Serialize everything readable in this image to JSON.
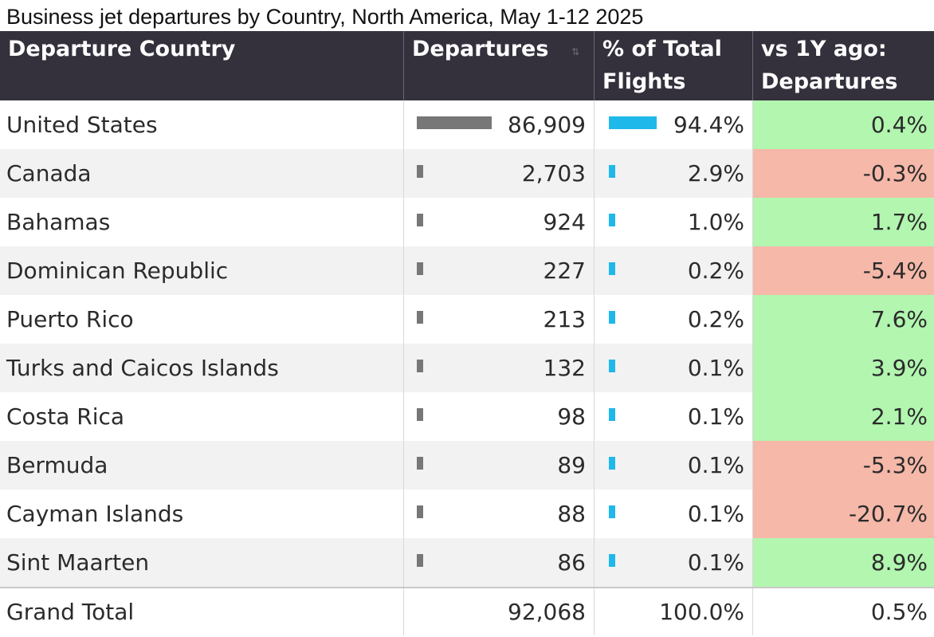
{
  "title": "Business jet departures by Country, North America, May 1-12 2025",
  "colors": {
    "header_bg": "#34313d",
    "departures_bar": "#777777",
    "pct_bar": "#1fb8ea",
    "positive_change": "#b2f6b0",
    "negative_change": "#f5b8a9"
  },
  "table": {
    "headers": {
      "country": "Departure Country",
      "departures": "Departures",
      "pct_line1": "% of Total",
      "pct_line2": "Flights",
      "yoy_line1": "vs 1Y ago:",
      "yoy_line2": "Departures"
    },
    "rows": [
      {
        "country": "United States",
        "departures": "86,909",
        "pct": "94.4%",
        "yoy": "0.4%"
      },
      {
        "country": "Canada",
        "departures": "2,703",
        "pct": "2.9%",
        "yoy": "-0.3%"
      },
      {
        "country": "Bahamas",
        "departures": "924",
        "pct": "1.0%",
        "yoy": "1.7%"
      },
      {
        "country": "Dominican Republic",
        "departures": "227",
        "pct": "0.2%",
        "yoy": "-5.4%"
      },
      {
        "country": "Puerto Rico",
        "departures": "213",
        "pct": "0.2%",
        "yoy": "7.6%"
      },
      {
        "country": "Turks and Caicos Islands",
        "departures": "132",
        "pct": "0.1%",
        "yoy": "3.9%"
      },
      {
        "country": "Costa Rica",
        "departures": "98",
        "pct": "0.1%",
        "yoy": "2.1%"
      },
      {
        "country": "Bermuda",
        "departures": "89",
        "pct": "0.1%",
        "yoy": "-5.3%"
      },
      {
        "country": "Cayman Islands",
        "departures": "88",
        "pct": "0.1%",
        "yoy": "-20.7%"
      },
      {
        "country": "Sint Maarten",
        "departures": "86",
        "pct": "0.1%",
        "yoy": "8.9%"
      }
    ],
    "total": {
      "label": "Grand Total",
      "departures": "92,068",
      "pct": "100.0%",
      "yoy": "0.5%"
    }
  },
  "chart_data": {
    "type": "table",
    "title": "Business jet departures by Country, North America, May 1-12 2025",
    "columns": [
      "Departure Country",
      "Departures",
      "% of Total Flights",
      "vs 1Y ago: Departures"
    ],
    "categories": [
      "United States",
      "Canada",
      "Bahamas",
      "Dominican Republic",
      "Puerto Rico",
      "Turks and Caicos Islands",
      "Costa Rica",
      "Bermuda",
      "Cayman Islands",
      "Sint Maarten"
    ],
    "series": [
      {
        "name": "Departures",
        "values": [
          86909,
          2703,
          924,
          227,
          213,
          132,
          98,
          89,
          88,
          86
        ]
      },
      {
        "name": "% of Total Flights",
        "values": [
          94.4,
          2.9,
          1.0,
          0.2,
          0.2,
          0.1,
          0.1,
          0.1,
          0.1,
          0.1
        ]
      },
      {
        "name": "vs 1Y ago: Departures",
        "values": [
          0.4,
          -0.3,
          1.7,
          -5.4,
          7.6,
          3.9,
          2.1,
          -5.3,
          -20.7,
          8.9
        ]
      }
    ],
    "total": {
      "Departures": 92068,
      "% of Total Flights": 100.0,
      "vs 1Y ago: Departures": 0.5
    }
  }
}
